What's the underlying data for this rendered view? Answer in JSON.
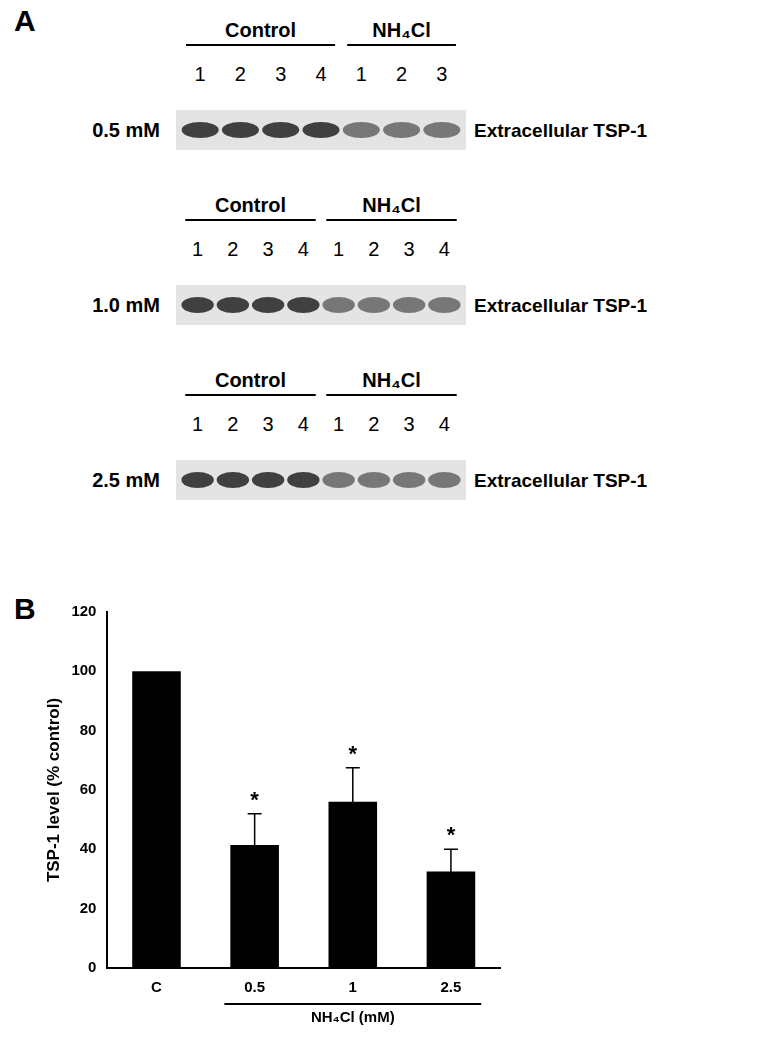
{
  "panel_labels": [
    "A",
    "B"
  ],
  "blot": {
    "target": "Extracellular TSP-1",
    "groups": [
      "Control",
      "NH₄Cl"
    ],
    "rows": [
      {
        "dose": "0.5 mM",
        "lanes": [
          [
            1,
            2,
            3,
            4
          ],
          [
            1,
            2,
            3
          ]
        ]
      },
      {
        "dose": "1.0 mM",
        "lanes": [
          [
            1,
            2,
            3,
            4
          ],
          [
            1,
            2,
            3,
            4
          ]
        ]
      },
      {
        "dose": "2.5 mM",
        "lanes": [
          [
            1,
            2,
            3,
            4
          ],
          [
            1,
            2,
            3,
            4
          ]
        ]
      }
    ]
  },
  "chart_data": {
    "type": "bar",
    "y_label": "TSP-1 level (% control)",
    "categories": [
      "C",
      "0.5",
      "1",
      "2.5"
    ],
    "values": [
      100,
      41.5,
      56,
      32.5
    ],
    "error": [
      null,
      10.5,
      11.5,
      7.5
    ],
    "annotations": [
      null,
      "*",
      "*",
      "*"
    ],
    "x_group": {
      "label": "NH₄Cl (mM)",
      "categories": [
        "0.5",
        "1",
        "2.5"
      ]
    },
    "color": "#000000",
    "ylim": [
      0,
      120
    ],
    "yticks": [
      0,
      20,
      40,
      60,
      80,
      100,
      120
    ],
    "grid": false
  }
}
